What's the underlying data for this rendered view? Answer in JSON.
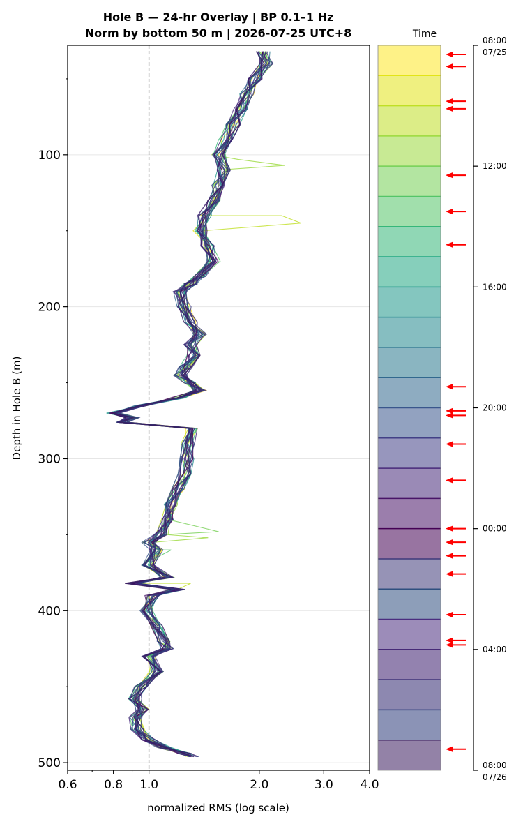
{
  "chart_data": {
    "type": "line",
    "title_line1": "Hole B — 24-hr Overlay  |  BP 0.1–1 Hz",
    "title_line2": "Norm by bottom 50 m  |  2026-07-25 UTC+8",
    "xlabel": "normalized RMS  (log scale)",
    "ylabel": "Depth in Hole B (m)",
    "x_scale": "log",
    "xlim": [
      0.6,
      4.0
    ],
    "ylim": [
      505,
      28
    ],
    "x_ticks": [
      {
        "value": 0.6,
        "label": "0.6"
      },
      {
        "value": 0.8,
        "label": "0.8"
      },
      {
        "value": 1.0,
        "label": "1.0"
      },
      {
        "value": 2.0,
        "label": "2.0"
      },
      {
        "value": 3.0,
        "label": "3.0"
      },
      {
        "value": 4.0,
        "label": "4.0"
      }
    ],
    "y_ticks": [
      100,
      200,
      300,
      400,
      500
    ],
    "y_minor_ticks": [
      50,
      150,
      250,
      350,
      450
    ],
    "grid": "horizontal",
    "reference_line_x": 1.0,
    "depth_profile": {
      "depths": [
        32,
        40,
        50,
        60,
        70,
        80,
        90,
        100,
        110,
        120,
        130,
        140,
        150,
        160,
        170,
        180,
        185,
        190,
        200,
        210,
        218,
        225,
        232,
        240,
        245,
        250,
        255,
        260,
        265,
        270,
        273,
        276,
        280,
        290,
        300,
        310,
        320,
        330,
        340,
        350,
        355,
        360,
        370,
        378,
        382,
        386,
        390,
        400,
        410,
        420,
        425,
        430,
        440,
        450,
        458,
        465,
        470,
        478,
        485,
        490,
        494,
        496
      ],
      "rms": [
        2.05,
        2.1,
        1.95,
        1.85,
        1.78,
        1.7,
        1.62,
        1.55,
        1.6,
        1.55,
        1.5,
        1.42,
        1.38,
        1.45,
        1.5,
        1.38,
        1.3,
        1.22,
        1.25,
        1.3,
        1.38,
        1.3,
        1.32,
        1.26,
        1.22,
        1.3,
        1.38,
        1.2,
        0.95,
        0.8,
        0.9,
        0.85,
        1.3,
        1.28,
        1.27,
        1.25,
        1.2,
        1.15,
        1.12,
        1.08,
        1.0,
        1.05,
        1.0,
        1.12,
        0.9,
        1.2,
        1.02,
        0.99,
        1.05,
        1.1,
        1.12,
        1.0,
        1.05,
        0.95,
        0.92,
        0.96,
        0.92,
        0.93,
        1.0,
        1.1,
        1.25,
        1.32
      ]
    },
    "series": [
      {
        "time": "08:00",
        "color": "#fde725"
      },
      {
        "time": "09:00",
        "color": "#e2e418"
      },
      {
        "time": "10:00",
        "color": "#c0df25"
      },
      {
        "time": "11:00",
        "color": "#9bd93c"
      },
      {
        "time": "12:00",
        "color": "#75d054"
      },
      {
        "time": "13:00",
        "color": "#54c568"
      },
      {
        "time": "14:00",
        "color": "#35b779"
      },
      {
        "time": "15:00",
        "color": "#22a884"
      },
      {
        "time": "16:00",
        "color": "#1f988b"
      },
      {
        "time": "17:00",
        "color": "#23888e"
      },
      {
        "time": "18:00",
        "color": "#2a788e"
      },
      {
        "time": "19:00",
        "color": "#31688e"
      },
      {
        "time": "20:00",
        "color": "#39568c"
      },
      {
        "time": "21:00",
        "color": "#424086"
      },
      {
        "time": "22:00",
        "color": "#472a7a"
      },
      {
        "time": "23:00",
        "color": "#481467"
      },
      {
        "time": "00:00",
        "color": "#440154"
      },
      {
        "time": "01:00",
        "color": "#3f3a7a"
      },
      {
        "time": "02:00",
        "color": "#2f4f7f"
      },
      {
        "time": "03:00",
        "color": "#4b2d7f"
      },
      {
        "time": "04:00",
        "color": "#3b1c6e"
      },
      {
        "time": "05:00",
        "color": "#30266f"
      },
      {
        "time": "06:00",
        "color": "#2c3b7a"
      },
      {
        "time": "07:00",
        "color": "#3a1c5e"
      }
    ],
    "spikes": [
      {
        "time": "11:00",
        "depth": 107,
        "rms": 2.35
      },
      {
        "time": "11:00",
        "depth": 103,
        "rms": 1.75
      },
      {
        "time": "10:00",
        "depth": 145,
        "rms": 2.6
      },
      {
        "time": "10:00",
        "depth": 140,
        "rms": 2.3
      },
      {
        "time": "12:00",
        "depth": 348,
        "rms": 1.55
      },
      {
        "time": "11:00",
        "depth": 352,
        "rms": 1.45
      },
      {
        "time": "10:00",
        "depth": 382,
        "rms": 1.3
      },
      {
        "time": "13:00",
        "depth": 360,
        "rms": 1.15
      }
    ],
    "colorbar": {
      "label": "Time",
      "top_time": "08:00",
      "top_date": "07/25",
      "bottom_time": "08:00",
      "bottom_date": "07/26",
      "tick_labels": [
        "12:00",
        "16:00",
        "20:00",
        "00:00",
        "04:00"
      ],
      "span_hours": 24,
      "tick_hours": [
        4,
        8,
        12,
        16,
        20
      ]
    },
    "event_markers_hours": [
      0.3,
      0.7,
      1.85,
      2.1,
      4.3,
      5.5,
      6.6,
      11.3,
      12.1,
      12.25,
      13.2,
      14.4,
      16.0,
      16.45,
      16.9,
      17.5,
      18.85,
      19.7,
      19.85,
      23.3
    ],
    "event_marker_color": "#ff0000"
  }
}
